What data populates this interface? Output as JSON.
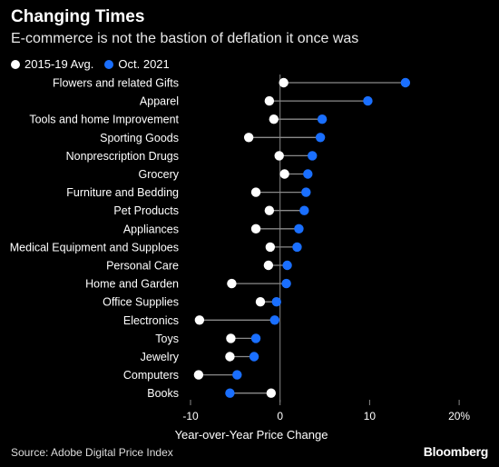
{
  "header": {
    "title": "Changing Times",
    "subtitle": "E-commerce is not the bastion of deflation it once was"
  },
  "legend": {
    "items": [
      {
        "label": "2015-19 Avg.",
        "color": "#ffffff"
      },
      {
        "label": "Oct. 2021",
        "color": "#1a6fff"
      }
    ]
  },
  "footer": {
    "source": "Source: Adobe Digital Price Index",
    "brand": "Bloomberg"
  },
  "chart_data": {
    "type": "dumbbell",
    "xlabel": "Year-over-Year Price Change",
    "xlim": [
      -12,
      22
    ],
    "xticks": [
      {
        "value": -10,
        "label": "-10"
      },
      {
        "value": 0,
        "label": "0"
      },
      {
        "value": 10,
        "label": "10"
      },
      {
        "value": 20,
        "label": "20%"
      }
    ],
    "series": [
      {
        "name": "2015-19 Avg.",
        "color": "#ffffff"
      },
      {
        "name": "Oct. 2021",
        "color": "#1a6fff"
      }
    ],
    "categories": [
      {
        "label": "Flowers and related Gifts",
        "avg": 0.4,
        "oct": 14.0
      },
      {
        "label": "Apparel",
        "avg": -1.2,
        "oct": 9.8
      },
      {
        "label": "Tools and home Improvement",
        "avg": -0.7,
        "oct": 4.7
      },
      {
        "label": "Sporting Goods",
        "avg": -3.5,
        "oct": 4.5
      },
      {
        "label": "Nonprescription Drugs",
        "avg": -0.1,
        "oct": 3.6
      },
      {
        "label": "Grocery",
        "avg": 0.5,
        "oct": 3.1
      },
      {
        "label": "Furniture and Bedding",
        "avg": -2.7,
        "oct": 2.9
      },
      {
        "label": "Pet Products",
        "avg": -1.2,
        "oct": 2.7
      },
      {
        "label": "Appliances",
        "avg": -2.7,
        "oct": 2.1
      },
      {
        "label": "Medical Equipment and Supploes",
        "avg": -1.1,
        "oct": 1.9
      },
      {
        "label": "Personal Care",
        "avg": -1.3,
        "oct": 0.8
      },
      {
        "label": "Home and Garden",
        "avg": -5.4,
        "oct": 0.7
      },
      {
        "label": "Office Supplies",
        "avg": -2.2,
        "oct": -0.4
      },
      {
        "label": "Electronics",
        "avg": -9.0,
        "oct": -0.6
      },
      {
        "label": "Toys",
        "avg": -5.5,
        "oct": -2.7
      },
      {
        "label": "Jewelry",
        "avg": -5.6,
        "oct": -2.9
      },
      {
        "label": "Computers",
        "avg": -9.1,
        "oct": -4.8
      },
      {
        "label": "Books",
        "avg": -1.0,
        "oct": -5.6
      }
    ]
  }
}
